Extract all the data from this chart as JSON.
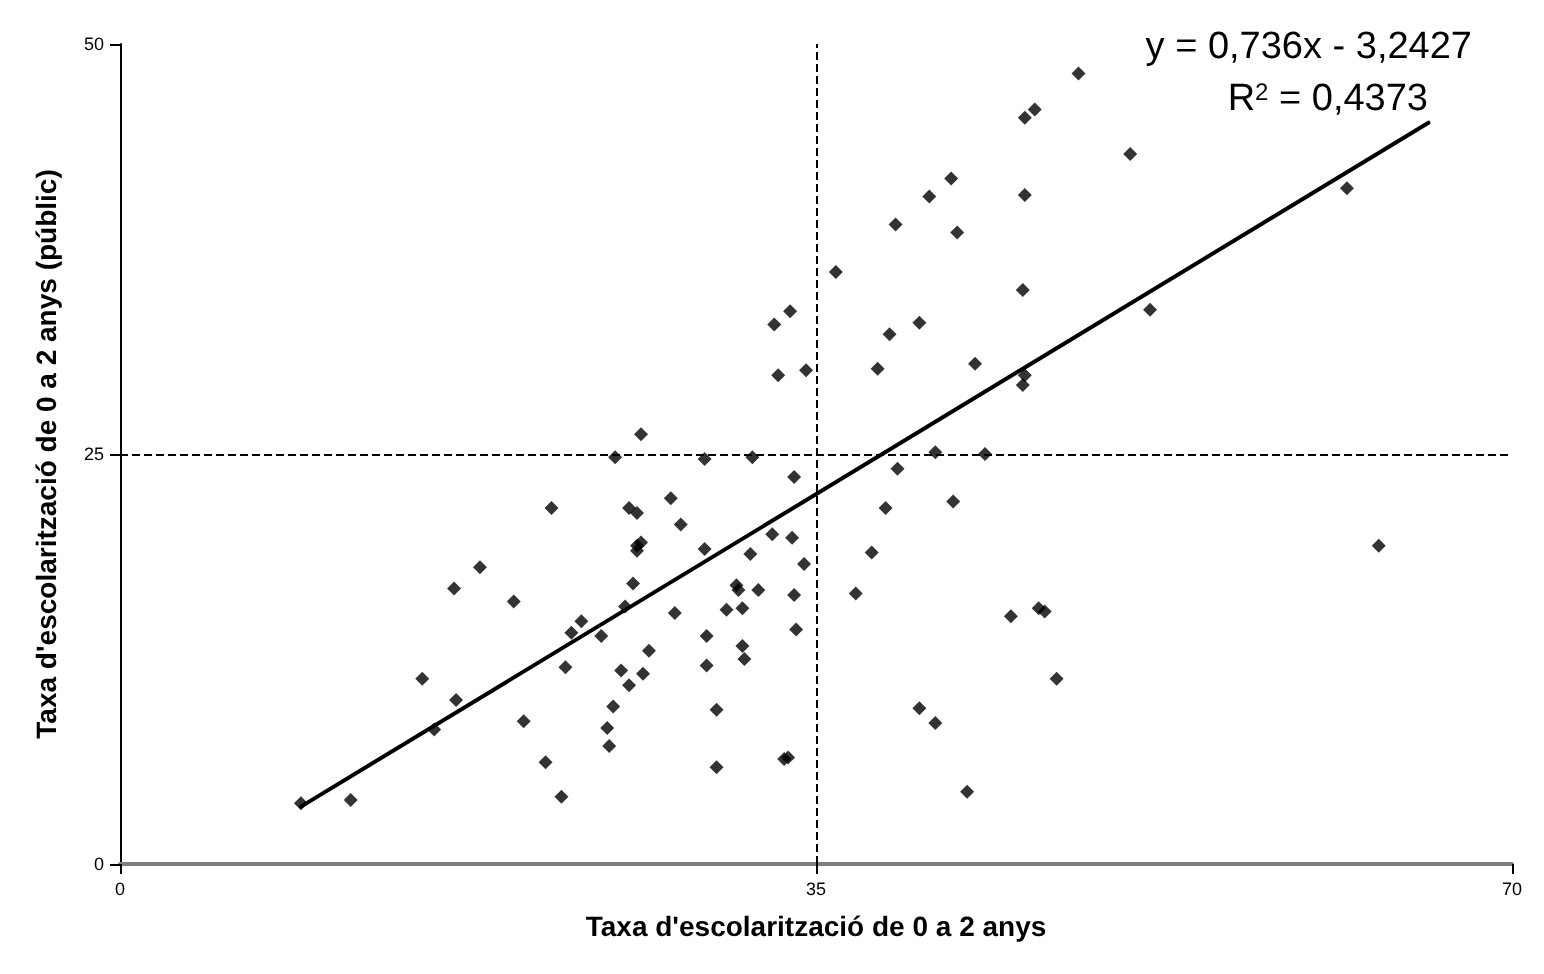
{
  "chart_data": {
    "type": "scatter",
    "xlabel": "Taxa d'escolarització de 0 a 2 anys",
    "ylabel": "Taxa d'escolarització de 0 a 2 anys (públic)",
    "xlim": [
      0,
      70
    ],
    "xticks": [
      0,
      35,
      70
    ],
    "ylim": [
      0,
      50
    ],
    "yticks": [
      0,
      25,
      50
    ],
    "annotations": [
      "y = 0,736x - 3,2427",
      "R$^{2}$ = 0,4373"
    ],
    "ref_lines": [
      {
        "axis": "x",
        "value": 35,
        "color": "#000000",
        "line_style": "dashed"
      },
      {
        "axis": "y",
        "value": 25,
        "color": "#000000",
        "line_style": "dashed"
      }
    ],
    "series": [
      {
        "color": "#000000",
        "marker": "diamond",
        "x": [
          9.1,
          11.6,
          15.2,
          15.8,
          16.9,
          16.8,
          18.1,
          19.8,
          20.3,
          21.4,
          21.7,
          22.2,
          22.4,
          22.7,
          23.2,
          24.2,
          24.5,
          24.6,
          24.8,
          24.9,
          25.2,
          25.4,
          25.6,
          26.0,
          25.6,
          25.8,
          26.0,
          26.2,
          26.0,
          26.3,
          26.6,
          27.7,
          27.9,
          28.2,
          29.4,
          29.4,
          29.5,
          29.5,
          30.0,
          30.0,
          30.5,
          31.0,
          31.1,
          31.3,
          31.3,
          31.4,
          31.7,
          31.8,
          32.1,
          32.8,
          33.4,
          33.6,
          33.8,
          33.9,
          33.9,
          34.0,
          34.4,
          26.2,
          32.9,
          33.7,
          33.1,
          34.5,
          36.0,
          48.2,
          45.5,
          46.0,
          50.8,
          41.8,
          40.7,
          45.5,
          39.0,
          42.1,
          61.7,
          45.4,
          40.2,
          38.7,
          51.8,
          38.1,
          43.0,
          45.5,
          45.4,
          41.0,
          43.5,
          39.1,
          38.5,
          41.9,
          37.8,
          37.0,
          44.8,
          46.2,
          46.5,
          47.1,
          40.2,
          41.0,
          42.6,
          63.3
        ],
        "values": [
          3.7,
          3.9,
          11.3,
          8.2,
          10.0,
          16.8,
          18.1,
          16.0,
          8.7,
          6.2,
          21.7,
          4.1,
          12.0,
          14.1,
          14.8,
          13.9,
          8.3,
          7.2,
          9.6,
          24.8,
          11.8,
          15.7,
          21.7,
          21.4,
          10.9,
          17.1,
          19.4,
          19.6,
          19.1,
          11.6,
          13.0,
          22.3,
          15.3,
          20.7,
          24.7,
          19.2,
          13.9,
          12.1,
          9.4,
          5.9,
          15.5,
          17.0,
          16.7,
          15.6,
          13.3,
          12.5,
          18.9,
          24.8,
          16.7,
          20.1,
          6.4,
          6.5,
          19.9,
          23.6,
          16.4,
          14.3,
          18.3,
          26.2,
          32.9,
          33.7,
          29.8,
          30.1,
          36.1,
          48.2,
          45.5,
          46.0,
          43.3,
          41.8,
          40.7,
          40.8,
          39.0,
          38.5,
          41.2,
          35.0,
          33.0,
          32.3,
          33.8,
          30.2,
          30.5,
          29.8,
          29.2,
          25.1,
          25.0,
          24.1,
          21.7,
          22.1,
          19.0,
          16.5,
          15.1,
          15.6,
          15.4,
          11.3,
          9.5,
          8.6,
          4.4,
          19.4
        ]
      },
      {
        "type": "line",
        "color": "#000000",
        "x": [
          9.1,
          65.8
        ],
        "values": [
          3.5,
          45.2
        ]
      }
    ]
  }
}
